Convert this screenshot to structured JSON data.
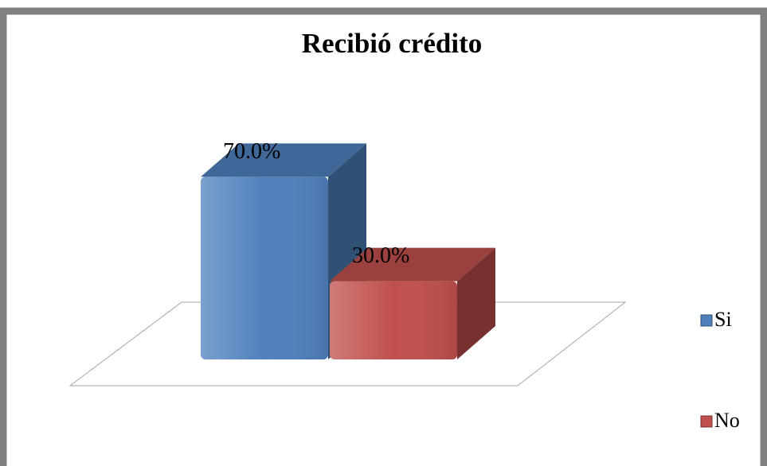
{
  "chart_data": {
    "type": "bar",
    "title": "Recibió crédito",
    "series": [
      {
        "name": "Si",
        "color": "#4f81bd",
        "values": [
          70
        ],
        "value_labels": [
          "70.0%"
        ]
      },
      {
        "name": "No",
        "color": "#c0504d",
        "values": [
          30
        ],
        "value_labels": [
          "30.0%"
        ]
      }
    ]
  }
}
